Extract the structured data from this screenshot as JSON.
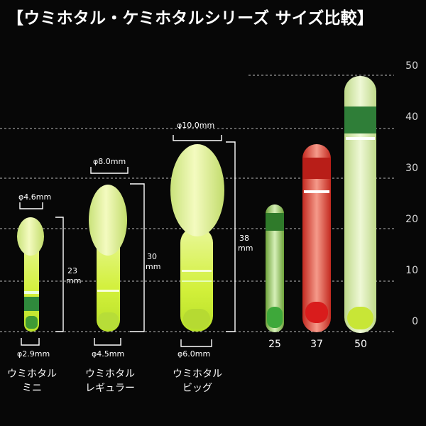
{
  "title": "【ウミホタル・ケミホタルシリーズ サイズ比較】",
  "products": [
    {
      "name_line1": "ウミホタル",
      "name_line2": "ミニ",
      "top_diameter": "φ4.6mm",
      "bottom_diameter": "φ2.9mm",
      "length_num": "23",
      "length_unit": "mm"
    },
    {
      "name_line1": "ウミホタル",
      "name_line2": "レギュラー",
      "top_diameter": "φ8.0mm",
      "bottom_diameter": "φ4.5mm",
      "length_num": "30",
      "length_unit": "mm"
    },
    {
      "name_line1": "ウミホタル",
      "name_line2": "ビッグ",
      "top_diameter": "φ10.0mm",
      "bottom_diameter": "φ6.0mm",
      "length_num": "38",
      "length_unit": "mm"
    }
  ],
  "chemi_sizes": [
    "25",
    "37",
    "50"
  ],
  "scale_ticks": [
    "50",
    "40",
    "30",
    "20",
    "10",
    "0"
  ],
  "colors": {
    "background": "#070707",
    "glow_yellow": "#e6f59a",
    "glow_green": "#2e8a3a",
    "red_stick": "#e84a3a"
  }
}
